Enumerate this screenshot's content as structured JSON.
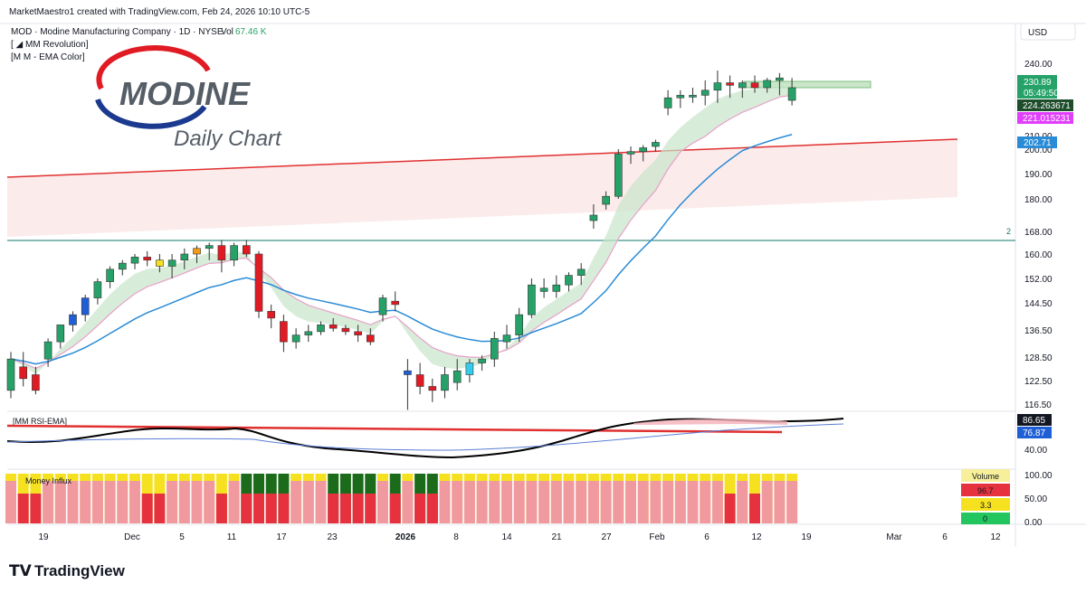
{
  "header": {
    "credit": "MarketMaestro1 created with TradingView.com, Feb 24, 2026 10:10 UTC-5",
    "symbol_line": "MOD · Modine Manufacturing Company · 1D · NYSE",
    "vol_label": "Vol",
    "vol_value": "67.46 K",
    "indicator1": "[ ◢ MM Revolution]",
    "indicator2": "[M M - EMA Color]",
    "currency": "USD"
  },
  "logo": {
    "name": "MODINE",
    "subtitle": "Daily Chart"
  },
  "footer": {
    "brand": "TradingView"
  },
  "colors": {
    "up": "#26a269",
    "down": "#e01b24",
    "blue": "#1f5fd6",
    "cyan": "#33ccee",
    "orange": "#f39c12",
    "yellow": "#f5e11f",
    "ema_blue": "#2a8bd6",
    "trend_red": "#e03030",
    "support_teal": "#0d7a6a"
  },
  "chart_data": {
    "type": "candlestick",
    "price_axis": {
      "ticks": [
        "240.00",
        "230.00",
        "220.00",
        "210.00",
        "200.00",
        "190.00",
        "180.00",
        "168.00",
        "160.00",
        "152.00",
        "144.50",
        "136.50",
        "128.50",
        "122.50",
        "116.50"
      ],
      "badges": [
        {
          "label": "230.89",
          "sub": "05:49:50",
          "color": "#26a269"
        },
        {
          "label": "224.263671",
          "color": "#1e4d2b"
        },
        {
          "label": "221.015231",
          "color": "#e040fb"
        },
        {
          "label": "202.71",
          "color": "#2a8bd6"
        }
      ],
      "level_label": "2"
    },
    "x_ticks": [
      "19",
      "Dec",
      "5",
      "11",
      "17",
      "23",
      "2026",
      "8",
      "14",
      "21",
      "27",
      "Feb",
      "6",
      "12",
      "19",
      "Mar",
      "6",
      "12"
    ],
    "candles": [
      [
        120,
        130,
        118,
        128
      ],
      [
        126,
        130,
        121,
        123
      ],
      [
        124,
        126,
        119,
        120
      ],
      [
        128,
        134,
        126,
        133
      ],
      [
        133,
        138,
        131,
        138
      ],
      [
        138,
        142,
        136,
        141
      ],
      [
        141,
        147,
        139,
        146
      ],
      [
        146,
        152,
        144,
        151
      ],
      [
        151,
        156,
        149,
        155
      ],
      [
        155,
        158,
        153,
        157
      ],
      [
        157,
        160,
        155,
        159
      ],
      [
        159,
        161,
        156,
        158
      ],
      [
        158,
        160,
        154,
        156
      ],
      [
        156,
        160,
        152,
        158
      ],
      [
        158,
        162,
        155,
        160
      ],
      [
        160,
        163,
        157,
        162
      ],
      [
        162,
        164,
        158,
        163
      ],
      [
        163,
        165,
        154,
        158
      ],
      [
        158,
        164,
        156,
        163
      ],
      [
        163,
        165,
        159,
        160
      ],
      [
        160,
        161,
        140,
        142
      ],
      [
        142,
        144,
        137,
        140
      ],
      [
        139,
        141,
        130,
        133
      ],
      [
        133,
        137,
        131,
        135
      ],
      [
        135,
        138,
        133,
        136
      ],
      [
        136,
        139,
        135,
        138
      ],
      [
        138,
        140,
        136,
        137
      ],
      [
        137,
        138,
        135,
        136
      ],
      [
        136,
        138,
        133,
        135
      ],
      [
        135,
        137,
        132,
        133
      ],
      [
        141,
        147,
        139,
        146
      ],
      [
        145,
        148,
        142,
        144
      ],
      [
        124,
        128,
        115,
        125
      ],
      [
        124,
        127,
        119,
        121
      ],
      [
        121,
        123,
        117,
        120
      ],
      [
        120,
        126,
        118,
        124
      ],
      [
        122,
        128,
        120,
        125
      ],
      [
        124,
        128,
        122,
        127
      ],
      [
        127,
        129,
        125,
        128
      ],
      [
        128,
        136,
        126,
        134
      ],
      [
        133,
        138,
        131,
        135
      ],
      [
        135,
        143,
        133,
        141
      ],
      [
        141,
        152,
        140,
        150
      ],
      [
        148,
        152,
        146,
        149
      ],
      [
        148,
        153,
        146,
        150
      ],
      [
        150,
        154,
        148,
        153
      ],
      [
        153,
        157,
        150,
        155
      ],
      [
        172,
        178,
        169,
        174
      ],
      [
        178,
        183,
        176,
        181
      ],
      [
        181,
        200,
        180,
        198
      ],
      [
        198,
        202,
        194,
        199
      ],
      [
        199,
        203,
        195,
        201
      ],
      [
        202,
        207,
        199,
        205
      ],
      [
        222,
        229,
        219,
        226
      ],
      [
        226,
        229,
        222,
        227
      ],
      [
        227,
        230,
        224,
        227
      ],
      [
        227,
        233,
        223,
        229
      ],
      [
        229,
        237,
        224,
        232
      ],
      [
        232,
        235,
        226,
        231
      ],
      [
        230,
        233,
        226,
        232
      ],
      [
        232,
        235,
        228,
        230
      ],
      [
        230,
        234,
        228,
        233
      ],
      [
        233,
        236,
        227,
        234
      ],
      [
        225,
        234,
        223,
        230
      ]
    ],
    "candle_colors": "see colors",
    "rsi": {
      "title": "[MM RSI-EMA]",
      "ticks": [
        "40.00"
      ],
      "badges": [
        {
          "label": "86.65",
          "color": "#131722"
        },
        {
          "label": "76.87",
          "color": "#1f5fd6"
        }
      ]
    },
    "money_flow": {
      "title": "Money Influx",
      "ticks": [
        "100.00",
        "50.00",
        "0.00"
      ],
      "table_header": "Volume",
      "table_rows": [
        {
          "label": "96.7",
          "color": "#e5323e"
        },
        {
          "label": "3.3",
          "color": "#f5e11f"
        },
        {
          "label": "0",
          "color": "#22c55e"
        }
      ]
    }
  }
}
